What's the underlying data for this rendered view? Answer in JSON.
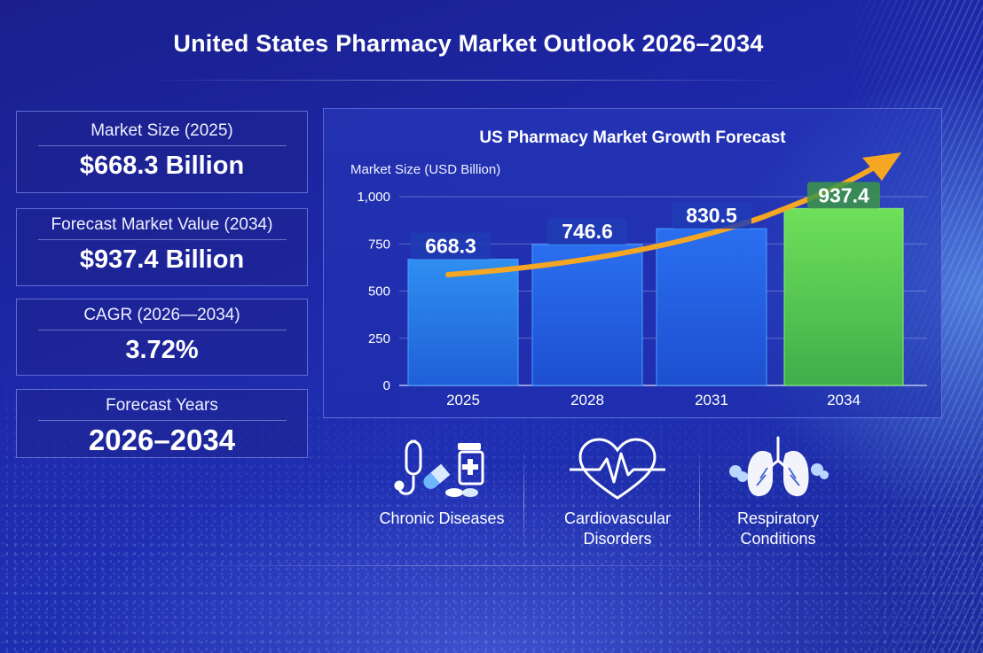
{
  "title": "United States Pharmacy Market Outlook 2026–2034",
  "stats": [
    {
      "label": "Market Size (2025)",
      "value": "$668.3 Billion"
    },
    {
      "label": "Forecast Market Value (2034)",
      "value": "$937.4 Billion"
    },
    {
      "label": "CAGR (2026—2034)",
      "value": "3.72%"
    },
    {
      "label": "Forecast Years",
      "value": "2026–2034"
    }
  ],
  "chart_data": {
    "type": "bar",
    "title": "US Pharmacy Market Growth Forecast",
    "xlabel": "",
    "ylabel": "Market Size (USD Billion)",
    "categories": [
      "2025",
      "2028",
      "2031",
      "2034"
    ],
    "values": [
      668.3,
      746.6,
      830.5,
      937.4
    ],
    "value_labels": [
      "668.3",
      "746.6",
      "830.5",
      "937.4"
    ],
    "ylim": [
      0,
      1000
    ],
    "yticks": [
      0,
      250,
      500,
      750,
      1000
    ],
    "ytick_labels": [
      "0",
      "250",
      "500",
      "750",
      "1,000"
    ],
    "grid": true,
    "legend": "none",
    "colors": {
      "bar_blue_top": "#2f8ff0",
      "bar_blue_bottom": "#1f5fd8",
      "bar_green_top": "#6ee05a",
      "bar_green_bottom": "#3fae4a",
      "arrow": "#f5a623"
    },
    "highlight_index": 3,
    "trend_arrow": true
  },
  "categories_row": [
    {
      "icon": "stethoscope-pills-icon",
      "label": "Chronic Diseases"
    },
    {
      "icon": "heart-pulse-icon",
      "label": "Cardiovascular\nDisorders"
    },
    {
      "icon": "lungs-icon",
      "label": "Respiratory\nConditions"
    }
  ]
}
